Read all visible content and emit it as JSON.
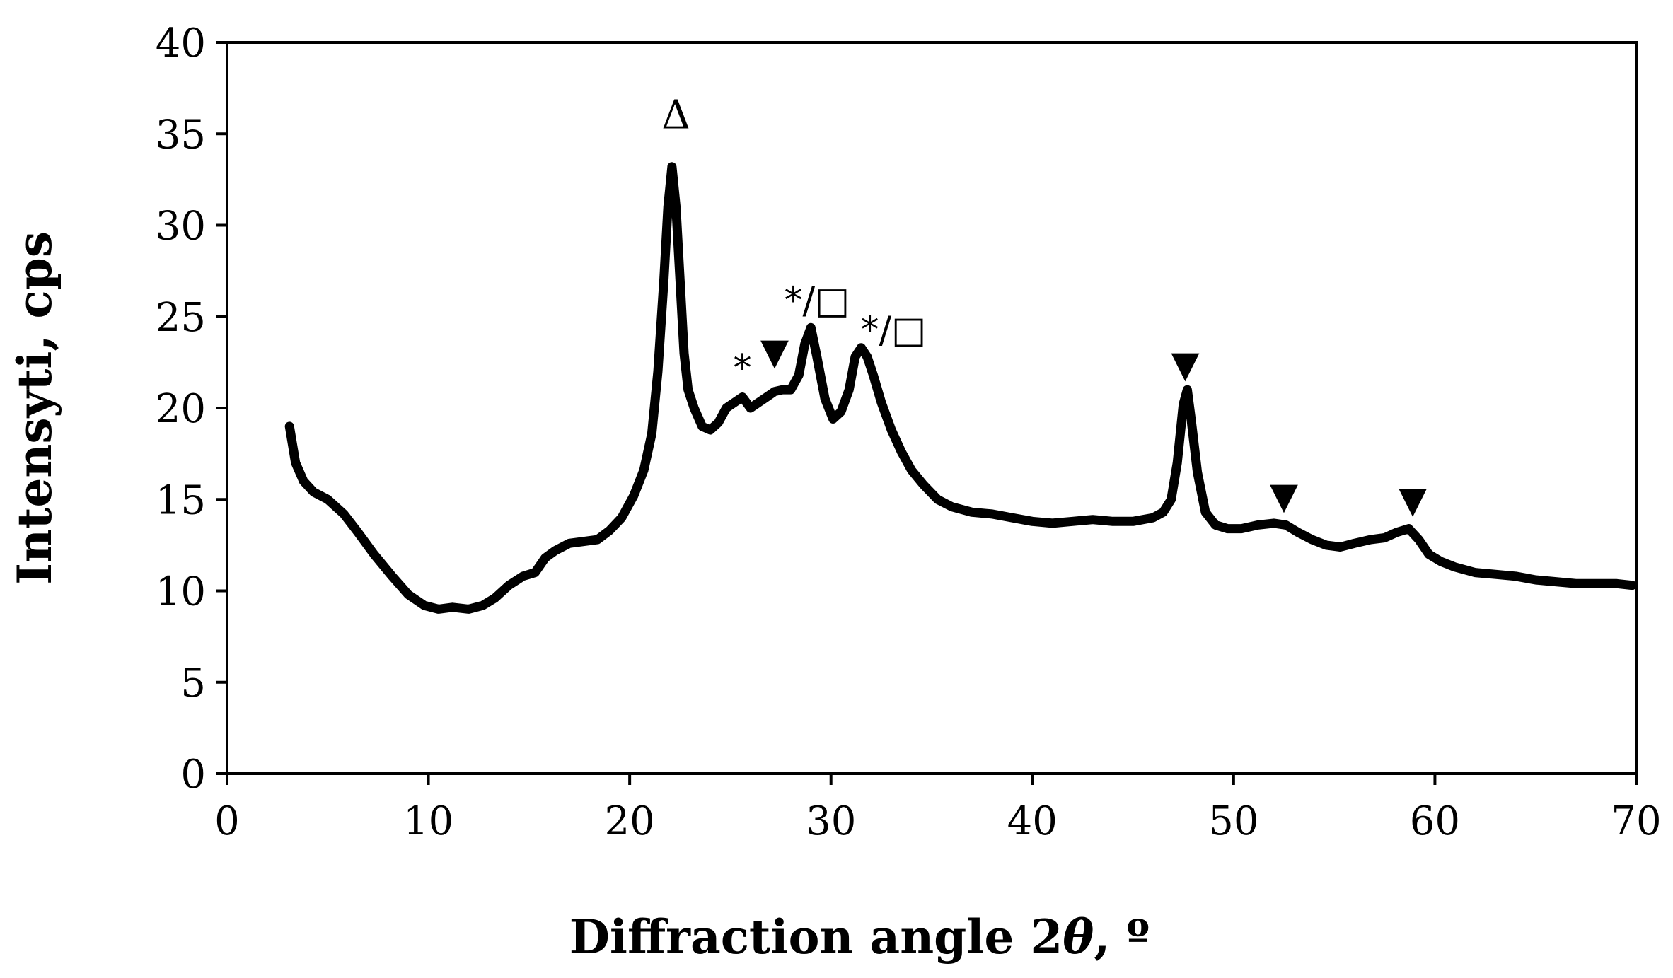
{
  "chart_data": {
    "type": "line",
    "title": "",
    "xlabel": "Diffraction angle 2θ, º",
    "xlabel_parts": {
      "main": "Diffraction angle 2",
      "theta": "θ",
      "suffix": ", º"
    },
    "ylabel": "Intensyti, cps",
    "ylabel_parts": {
      "main": "Intensyti",
      "suffix": ", cps"
    },
    "xlim": [
      0,
      70
    ],
    "ylim": [
      0,
      40
    ],
    "x_ticks": [
      "0",
      "10",
      "20",
      "30",
      "40",
      "50",
      "60",
      "70"
    ],
    "y_ticks": [
      "0",
      "5",
      "10",
      "15",
      "20",
      "25",
      "30",
      "35",
      "40"
    ],
    "grid": false,
    "legend": "none",
    "line_color": "#000000",
    "series": [
      {
        "x": [
          3.1,
          3.4,
          3.8,
          4.3,
          5.0,
          5.8,
          6.5,
          7.3,
          8.2,
          9.0,
          9.8,
          10.5,
          11.2,
          12.0,
          12.7,
          13.3,
          14.0,
          14.7,
          15.3,
          15.8,
          16.3,
          17.0,
          17.7,
          18.4,
          19.0,
          19.6,
          20.2,
          20.7,
          21.1,
          21.4,
          21.7,
          21.9,
          22.1,
          22.3,
          22.5,
          22.7,
          22.9,
          23.2,
          23.6,
          24.0,
          24.4,
          24.8,
          25.2,
          25.6,
          26.0,
          26.4,
          26.8,
          27.2,
          27.6,
          28.0,
          28.4,
          28.7,
          29.0,
          29.3,
          29.7,
          30.1,
          30.5,
          30.9,
          31.2,
          31.5,
          31.8,
          32.1,
          32.5,
          33.0,
          33.5,
          34.0,
          34.6,
          35.3,
          36.0,
          37.0,
          38.0,
          39.0,
          40.0,
          41.0,
          42.0,
          43.0,
          44.0,
          45.0,
          46.0,
          46.5,
          46.9,
          47.2,
          47.5,
          47.7,
          47.9,
          48.2,
          48.6,
          49.1,
          49.7,
          50.4,
          51.2,
          52.0,
          52.6,
          53.2,
          53.9,
          54.6,
          55.3,
          56.0,
          56.8,
          57.5,
          58.1,
          58.7,
          59.2,
          59.7,
          60.3,
          61.0,
          62.0,
          63.0,
          64.0,
          65.0,
          66.0,
          67.0,
          68.0,
          69.0,
          69.8
        ],
        "y": [
          19.0,
          17.0,
          16.0,
          15.4,
          15.0,
          14.2,
          13.2,
          12.0,
          10.8,
          9.8,
          9.2,
          9.0,
          9.1,
          9.0,
          9.2,
          9.6,
          10.3,
          10.8,
          11.0,
          11.8,
          12.2,
          12.6,
          12.7,
          12.8,
          13.3,
          14.0,
          15.2,
          16.6,
          18.6,
          22.0,
          27.0,
          31.0,
          33.2,
          31.0,
          27.0,
          23.0,
          21.0,
          20.0,
          19.0,
          18.8,
          19.2,
          20.0,
          20.3,
          20.6,
          20.0,
          20.3,
          20.6,
          20.9,
          21.0,
          21.0,
          21.8,
          23.5,
          24.4,
          22.8,
          20.5,
          19.4,
          19.8,
          21.0,
          22.8,
          23.3,
          22.8,
          21.8,
          20.3,
          18.8,
          17.6,
          16.6,
          15.8,
          15.0,
          14.6,
          14.3,
          14.2,
          14.0,
          13.8,
          13.7,
          13.8,
          13.9,
          13.8,
          13.8,
          14.0,
          14.3,
          15.0,
          17.0,
          20.2,
          21.0,
          19.3,
          16.5,
          14.3,
          13.6,
          13.4,
          13.4,
          13.6,
          13.7,
          13.6,
          13.2,
          12.8,
          12.5,
          12.4,
          12.6,
          12.8,
          12.9,
          13.2,
          13.4,
          12.8,
          12.0,
          11.6,
          11.3,
          11.0,
          10.9,
          10.8,
          10.6,
          10.5,
          10.4,
          10.4,
          10.4,
          10.3
        ]
      }
    ],
    "annotations": [
      {
        "label": "Δ",
        "x": 22.3,
        "y": 35.3,
        "style": "serif"
      },
      {
        "label": "*",
        "x": 25.6,
        "y": 21.5,
        "style": "sans"
      },
      {
        "label": "▼",
        "x": 27.2,
        "y": 22.4,
        "style": "sans"
      },
      {
        "label": "*/□",
        "x": 29.3,
        "y": 25.2,
        "style": "sans"
      },
      {
        "label": "*/□",
        "x": 33.1,
        "y": 23.6,
        "style": "sans"
      },
      {
        "label": "▼",
        "x": 47.6,
        "y": 21.7,
        "style": "sans"
      },
      {
        "label": "▼",
        "x": 52.5,
        "y": 14.5,
        "style": "sans"
      },
      {
        "label": "▼",
        "x": 58.9,
        "y": 14.3,
        "style": "sans"
      }
    ]
  }
}
